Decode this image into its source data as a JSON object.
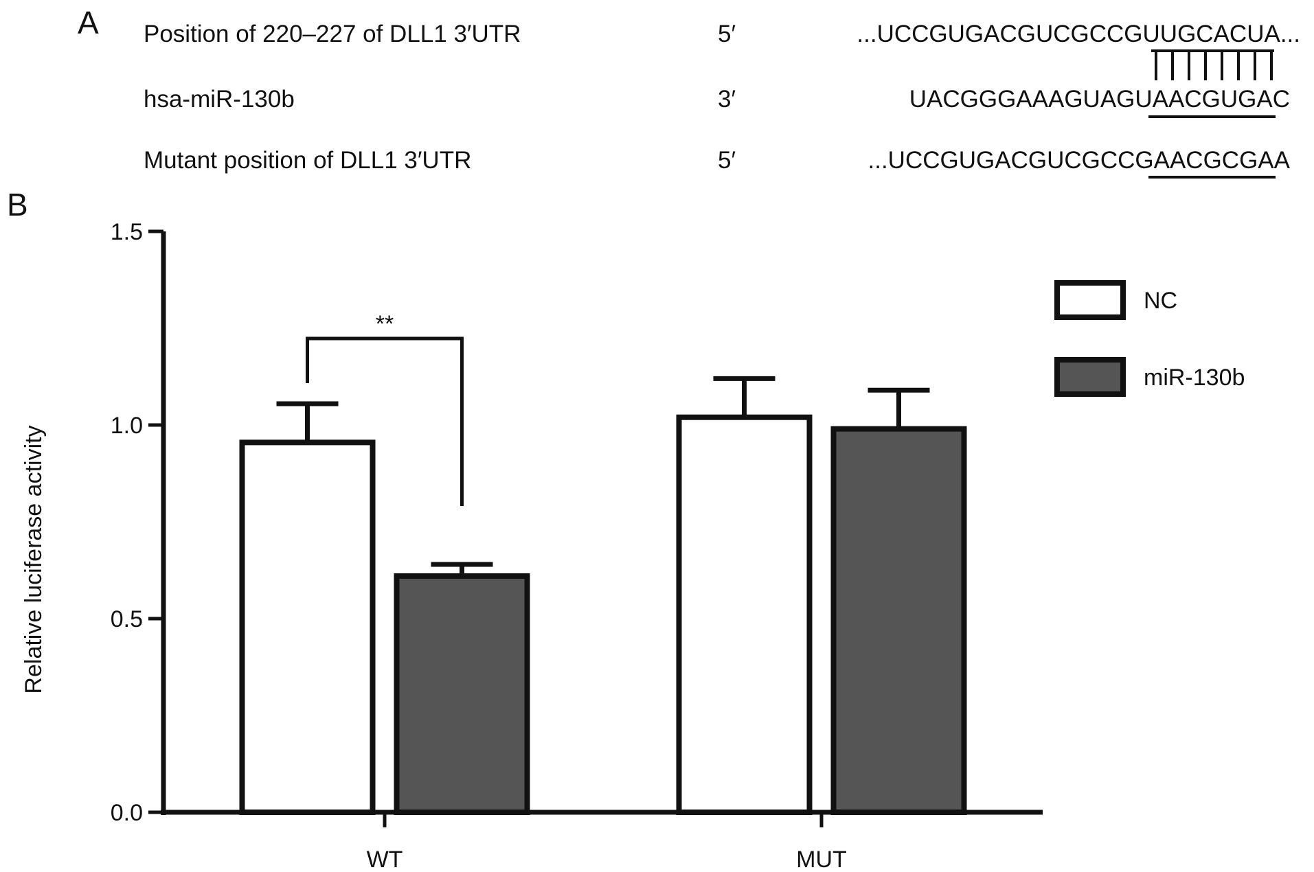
{
  "panel_a": {
    "label": "A",
    "rows": [
      {
        "name": "Position of 220–227 of DLL1 3′UTR",
        "end": "5′",
        "sequence": "...UCCGUGACGUCGCCGUUGCACUA..."
      },
      {
        "name": "hsa-miR-130b",
        "end": "3′",
        "sequence": "UACGGGAAAGUAGUAACGUGAC"
      },
      {
        "name": "Mutant position of DLL1 3′UTR",
        "end": "5′",
        "sequence": "...UCCGUGACGUCGCCGAACGCGAA"
      }
    ]
  },
  "panel_b": {
    "label": "B"
  },
  "chart_data": {
    "type": "bar",
    "title": "",
    "xlabel": "",
    "ylabel": "Relative luciferase activity",
    "ylim": [
      0,
      1.5
    ],
    "yticks": [
      0.0,
      0.5,
      1.0,
      1.5
    ],
    "ytick_labels": [
      "0.0",
      "0.5",
      "1.0",
      "1.5"
    ],
    "categories": [
      "WT",
      "MUT"
    ],
    "series": [
      {
        "name": "NC",
        "color": "#ffffff",
        "values": [
          0.955,
          1.02
        ],
        "errors": [
          0.1,
          0.1
        ]
      },
      {
        "name": "miR-130b",
        "color": "#555555",
        "values": [
          0.61,
          0.99
        ],
        "errors": [
          0.03,
          0.1
        ]
      }
    ],
    "annotations": [
      {
        "text": "**",
        "category": "WT",
        "between": [
          "NC",
          "miR-130b"
        ]
      }
    ],
    "legend_position": "right",
    "grid": false
  }
}
